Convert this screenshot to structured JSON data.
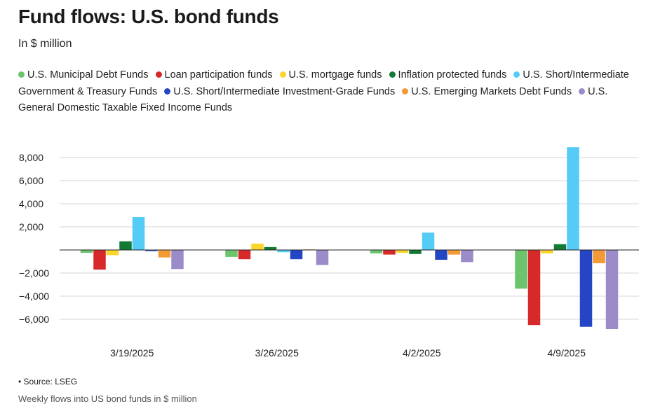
{
  "header": {
    "title": "Fund flows: U.S. bond funds",
    "subtitle": "In $ million"
  },
  "footer": {
    "source": "• Source: LSEG",
    "caption": "Weekly flows into US bond funds in $ million"
  },
  "chart_data": {
    "type": "bar",
    "title": "Fund flows: U.S. bond funds",
    "subtitle": "In $ million",
    "xlabel": "",
    "ylabel": "",
    "categories": [
      "3/19/2025",
      "3/26/2025",
      "4/2/2025",
      "4/9/2025"
    ],
    "ylim": [
      -7000,
      9000
    ],
    "yticks": [
      8000,
      6000,
      4000,
      2000,
      -2000,
      -4000,
      -6000
    ],
    "ytick_labels": [
      "8,000",
      "6,000",
      "4,000",
      "2,000",
      "−2,000",
      "−4,000",
      "−6,000"
    ],
    "grid": true,
    "legend_position": "top",
    "series": [
      {
        "name": "U.S. Municipal Debt Funds",
        "color": "#6cc46c",
        "values": [
          -250,
          -600,
          -300,
          -3350
        ]
      },
      {
        "name": "Loan participation funds",
        "color": "#d7282a",
        "values": [
          -1700,
          -800,
          -400,
          -6500
        ]
      },
      {
        "name": "U.S. mortgage funds",
        "color": "#fbd52c",
        "values": [
          -450,
          550,
          -250,
          -300
        ]
      },
      {
        "name": "Inflation protected funds",
        "color": "#137a35",
        "values": [
          750,
          250,
          -350,
          500
        ]
      },
      {
        "name": "U.S. Short/Intermediate Government & Treasury Funds",
        "color": "#55ccf5",
        "values": [
          2850,
          -200,
          1500,
          8900
        ]
      },
      {
        "name": "U.S. Short/Intermediate Investment-Grade Funds",
        "color": "#2546c4",
        "values": [
          -100,
          -800,
          -850,
          -6650
        ]
      },
      {
        "name": "U.S. Emerging Markets Debt Funds",
        "color": "#f39a37",
        "values": [
          -650,
          50,
          -400,
          -1150
        ]
      },
      {
        "name": "U.S. General Domestic Taxable Fixed Income Funds",
        "color": "#9b8bc8",
        "values": [
          -1650,
          -1300,
          -1050,
          -6850
        ]
      }
    ]
  }
}
